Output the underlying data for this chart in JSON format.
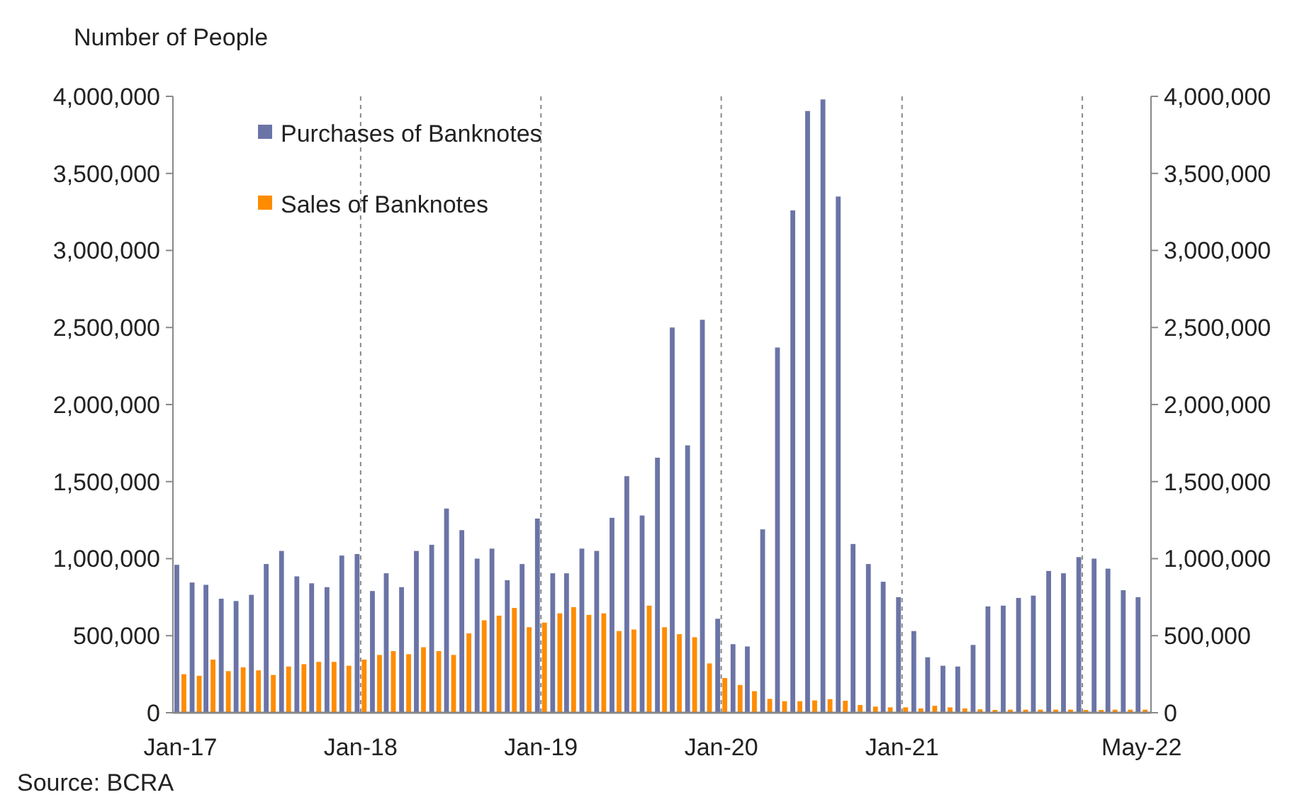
{
  "chart_data": {
    "type": "bar",
    "ylabel": "Number of People",
    "annotations": [
      "Source: BCRA"
    ],
    "x": [
      "2017-01",
      "2017-02",
      "2017-03",
      "2017-04",
      "2017-05",
      "2017-06",
      "2017-07",
      "2017-08",
      "2017-09",
      "2017-10",
      "2017-11",
      "2017-12",
      "2018-01",
      "2018-02",
      "2018-03",
      "2018-04",
      "2018-05",
      "2018-06",
      "2018-07",
      "2018-08",
      "2018-09",
      "2018-10",
      "2018-11",
      "2018-12",
      "2019-01",
      "2019-02",
      "2019-03",
      "2019-04",
      "2019-05",
      "2019-06",
      "2019-07",
      "2019-08",
      "2019-09",
      "2019-10",
      "2019-11",
      "2019-12",
      "2020-01",
      "2020-02",
      "2020-03",
      "2020-04",
      "2020-05",
      "2020-06",
      "2020-07",
      "2020-08",
      "2020-09",
      "2020-10",
      "2020-11",
      "2020-12",
      "2021-01",
      "2021-02",
      "2021-03",
      "2021-04",
      "2021-05",
      "2021-06",
      "2021-07",
      "2021-08",
      "2021-09",
      "2021-10",
      "2021-11",
      "2021-12",
      "2022-01",
      "2022-02",
      "2022-03",
      "2022-04",
      "2022-05"
    ],
    "series": [
      {
        "name": "Purchases of Banknotes",
        "color": "#6b74a6",
        "values": [
          960000,
          845000,
          830000,
          740000,
          725000,
          765000,
          965000,
          1050000,
          885000,
          840000,
          815000,
          1020000,
          1030000,
          790000,
          905000,
          815000,
          1050000,
          1090000,
          1325000,
          1185000,
          1000000,
          1065000,
          860000,
          965000,
          1260000,
          905000,
          905000,
          1065000,
          1050000,
          1265000,
          1535000,
          1280000,
          1655000,
          2500000,
          1735000,
          2550000,
          610000,
          445000,
          430000,
          1190000,
          2370000,
          3260000,
          3905000,
          3980000,
          3350000,
          1095000,
          965000,
          850000,
          750000,
          530000,
          360000,
          305000,
          300000,
          440000,
          690000,
          695000,
          745000,
          760000,
          920000,
          905000,
          1010000,
          1000000,
          935000,
          795000,
          750000
        ]
      },
      {
        "name": "Sales of Banknotes",
        "color": "#ff8c00",
        "values": [
          250000,
          240000,
          345000,
          270000,
          295000,
          275000,
          245000,
          300000,
          315000,
          330000,
          330000,
          305000,
          345000,
          375000,
          400000,
          380000,
          425000,
          400000,
          375000,
          515000,
          600000,
          630000,
          680000,
          555000,
          585000,
          645000,
          685000,
          635000,
          645000,
          530000,
          540000,
          695000,
          555000,
          510000,
          490000,
          320000,
          225000,
          180000,
          140000,
          90000,
          75000,
          75000,
          80000,
          88000,
          78000,
          50000,
          40000,
          35000,
          35000,
          28000,
          45000,
          35000,
          28000,
          22000,
          18000,
          20000,
          20000,
          20000,
          20000,
          20000,
          18000,
          18000,
          20000,
          20000,
          20000
        ]
      }
    ],
    "xlim": [
      "2016-12-17",
      "2022-05-20"
    ],
    "xticks": [
      {
        "value": "2017-01",
        "label": "Jan-17"
      },
      {
        "value": "2018-01",
        "label": "Jan-18"
      },
      {
        "value": "2019-01",
        "label": "Jan-19"
      },
      {
        "value": "2020-01",
        "label": "Jan-20"
      },
      {
        "value": "2021-01",
        "label": "Jan-21"
      },
      {
        "value": "2022-05",
        "label": "May-22"
      }
    ],
    "ylim": [
      0,
      4000000
    ],
    "yticks": [
      {
        "value": 0,
        "label": "0"
      },
      {
        "value": 500000,
        "label": "500,000"
      },
      {
        "value": 1000000,
        "label": "1,000,000"
      },
      {
        "value": 1500000,
        "label": "1,500,000"
      },
      {
        "value": 2000000,
        "label": "2,000,000"
      },
      {
        "value": 2500000,
        "label": "2,500,000"
      },
      {
        "value": 3000000,
        "label": "3,000,000"
      },
      {
        "value": 3500000,
        "label": "3,500,000"
      },
      {
        "value": 4000000,
        "label": "4,000,000"
      }
    ],
    "y2lim": [
      0,
      4000000
    ],
    "y2ticks": [
      {
        "value": 0,
        "label": "0"
      },
      {
        "value": 500000,
        "label": "500,000"
      },
      {
        "value": 1000000,
        "label": "1,000,000"
      },
      {
        "value": 1500000,
        "label": "1,500,000"
      },
      {
        "value": 2000000,
        "label": "2,000,000"
      },
      {
        "value": 2500000,
        "label": "2,500,000"
      },
      {
        "value": 3000000,
        "label": "3,000,000"
      },
      {
        "value": 3500000,
        "label": "3,500,000"
      },
      {
        "value": 4000000,
        "label": "4,000,000"
      }
    ],
    "ref_lines": [
      {
        "axis": "x",
        "value": "2018-01",
        "line_style": "dashed",
        "color": "#888888"
      },
      {
        "axis": "x",
        "value": "2019-01",
        "line_style": "dashed",
        "color": "#888888"
      },
      {
        "axis": "x",
        "value": "2020-01",
        "line_style": "dashed",
        "color": "#888888"
      },
      {
        "axis": "x",
        "value": "2021-01",
        "line_style": "dashed",
        "color": "#888888"
      },
      {
        "axis": "x",
        "value": "2022-01",
        "line_style": "dashed",
        "color": "#888888"
      }
    ],
    "legend": "top left",
    "grid": false
  }
}
